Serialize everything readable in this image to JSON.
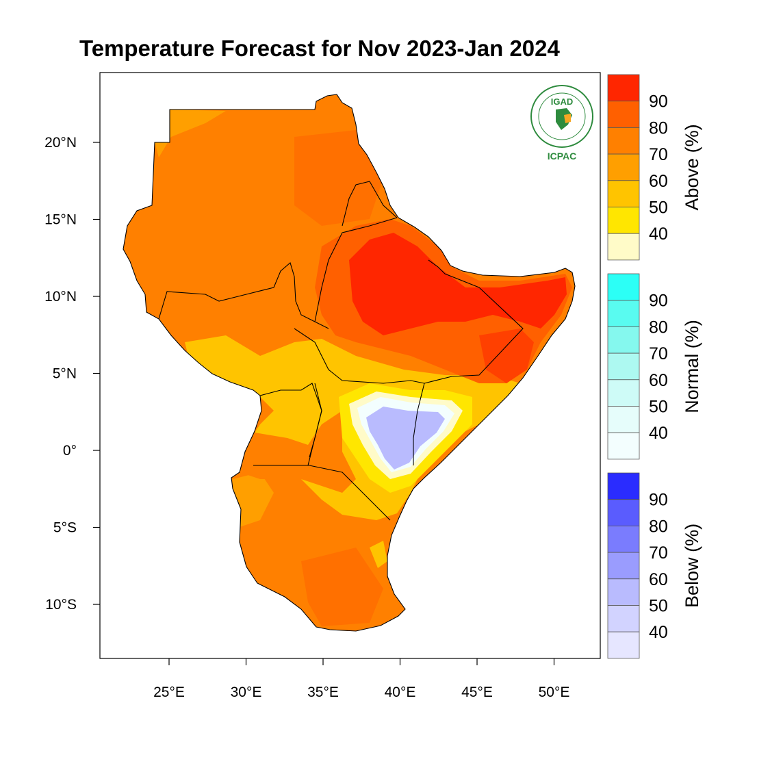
{
  "title": "Temperature Forecast for Nov 2023-Jan 2024",
  "map": {
    "lon_range": [
      21,
      54
    ],
    "lat_range": [
      -13.5,
      24.5
    ],
    "x_ticks": [
      {
        "value": 25,
        "label": "25°E"
      },
      {
        "value": 30,
        "label": "30°E"
      },
      {
        "value": 35,
        "label": "35°E"
      },
      {
        "value": 40,
        "label": "40°E"
      },
      {
        "value": 45,
        "label": "45°E"
      },
      {
        "value": 50,
        "label": "50°E"
      }
    ],
    "y_ticks": [
      {
        "value": 20,
        "label": "20°N"
      },
      {
        "value": 15,
        "label": "15°N"
      },
      {
        "value": 10,
        "label": "10°N"
      },
      {
        "value": 5,
        "label": "5°N"
      },
      {
        "value": 0,
        "label": "0°"
      },
      {
        "value": -5,
        "label": "5°S"
      },
      {
        "value": -10,
        "label": "10°S"
      }
    ]
  },
  "logo": {
    "top_text": "IGAD",
    "bottom_text": "ICPAC"
  },
  "legend": {
    "above": {
      "title": "Above (%)",
      "labels": [
        "90",
        "80",
        "70",
        "60",
        "50",
        "40"
      ],
      "colors": [
        "#ff2600",
        "#ff6000",
        "#ff8000",
        "#ff9f00",
        "#ffc400",
        "#ffe600",
        "#fffbc8"
      ]
    },
    "normal": {
      "title": "Normal (%)",
      "labels": [
        "90",
        "80",
        "70",
        "60",
        "50",
        "40"
      ],
      "colors": [
        "#2cfff6",
        "#59fbf0",
        "#85f8ee",
        "#adf9f1",
        "#cefbf7",
        "#e6fdfb",
        "#f3fefe"
      ]
    },
    "below": {
      "title": "Below (%)",
      "labels": [
        "90",
        "80",
        "70",
        "60",
        "50",
        "40"
      ],
      "colors": [
        "#2a2cff",
        "#5a5cfe",
        "#7a7cfe",
        "#9a9cfe",
        "#b9bbfe",
        "#d2d3ff",
        "#e6e6ff"
      ]
    }
  }
}
